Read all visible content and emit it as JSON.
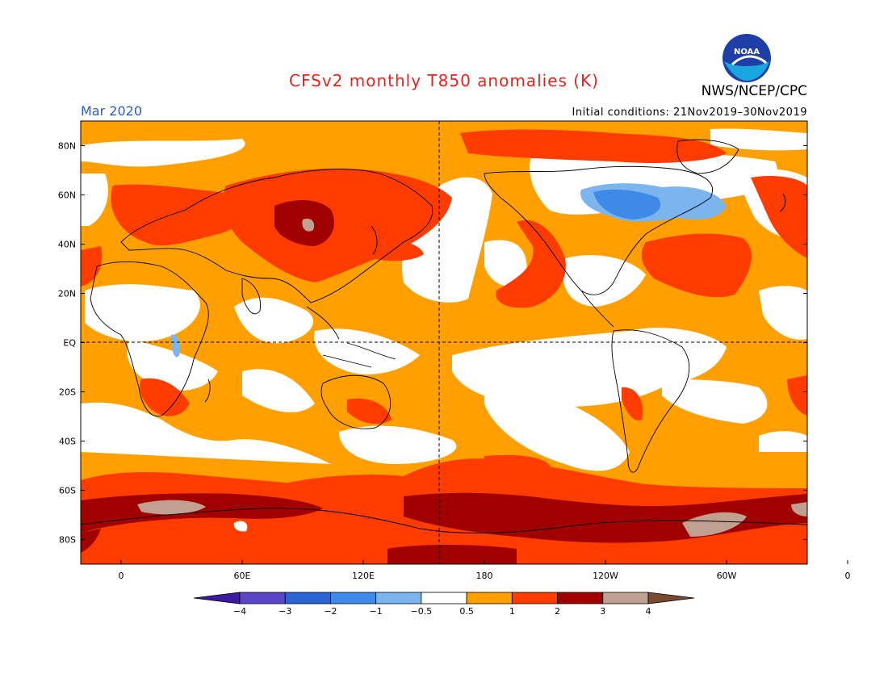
{
  "header": {
    "title": "CFSv2 monthly T850 anomalies (K)",
    "agency": "NWS/NCEP/CPC",
    "month": "Mar 2020",
    "initial_conditions": "Initial conditions: 21Nov2019–30Nov2019",
    "logo_text": "NOAA"
  },
  "axes": {
    "lat_labels": [
      "80N",
      "60N",
      "40N",
      "20N",
      "EQ",
      "20S",
      "40S",
      "60S",
      "80S"
    ],
    "lon_labels": [
      "0",
      "60E",
      "120E",
      "180",
      "120W",
      "60W",
      "0"
    ]
  },
  "colorbar": {
    "labels": [
      "−4",
      "−3",
      "−2",
      "−1",
      "−0.5",
      "0.5",
      "1",
      "2",
      "3",
      "4"
    ],
    "colors": [
      "#3a1aa0",
      "#5a45c8",
      "#2a63d4",
      "#3f8ae6",
      "#7cb5ee",
      "#ffffff",
      "#ffa000",
      "#ff3c00",
      "#a00000",
      "#c0a090",
      "#7a4a30"
    ]
  },
  "chart_data": {
    "type": "heatmap",
    "variable": "T850 anomalies (K)",
    "levels": [
      -4,
      -3,
      -2,
      -1,
      -0.5,
      0.5,
      1,
      2,
      3,
      4
    ],
    "lat_range": [
      -90,
      90
    ],
    "lon_range": [
      -20,
      340
    ]
  }
}
